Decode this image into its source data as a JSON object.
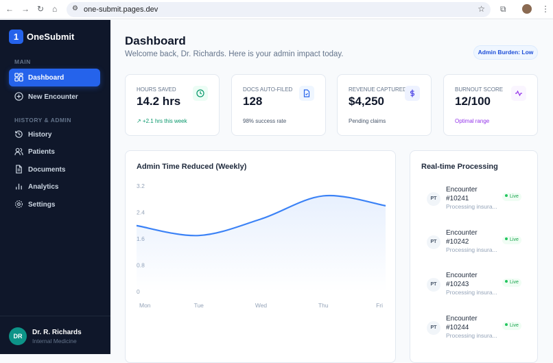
{
  "browser": {
    "url": "one-submit.pages.dev"
  },
  "sidebar": {
    "logo": "1",
    "brand": "OneSubmit",
    "section_main": "MAIN",
    "section_history": "HISTORY & ADMIN",
    "items": [
      {
        "label": "Dashboard",
        "icon": "grid-icon",
        "active": true
      },
      {
        "label": "New Encounter",
        "icon": "plus-circle-icon"
      },
      {
        "label": "History",
        "icon": "history-icon"
      },
      {
        "label": "Patients",
        "icon": "users-icon"
      },
      {
        "label": "Documents",
        "icon": "document-icon"
      },
      {
        "label": "Analytics",
        "icon": "bar-chart-icon"
      },
      {
        "label": "Settings",
        "icon": "gear-icon"
      }
    ],
    "user": {
      "initials": "DR",
      "name": "Dr. R. Richards",
      "role": "Internal Medicine"
    }
  },
  "header": {
    "title": "Dashboard",
    "subtitle": "Welcome back, Dr. Richards. Here is your admin impact today.",
    "badge": "Admin Burden: Low"
  },
  "stats": [
    {
      "title": "HOURS SAVED",
      "value": "14.2 hrs",
      "sub": "↗ +2.1 hrs this week",
      "icon": "clock-icon",
      "color": "#059669"
    },
    {
      "title": "DOCS AUTO-FILED",
      "value": "128",
      "sub": "98% success rate",
      "icon": "file-check-icon",
      "color": "#2563eb"
    },
    {
      "title": "REVENUE CAPTURED",
      "value": "$4,250",
      "sub": "Pending claims",
      "icon": "dollar-icon",
      "color": "#4f46e5"
    },
    {
      "title": "BURNOUT SCORE",
      "value": "12/100",
      "sub": "Optimal range",
      "icon": "activity-icon",
      "color": "#9333ea"
    }
  ],
  "chart_data": {
    "type": "area",
    "title": "Admin Time Reduced (Weekly)",
    "categories": [
      "Mon",
      "Tue",
      "Wed",
      "Thu",
      "Fri"
    ],
    "values": [
      2.0,
      1.7,
      2.2,
      2.9,
      2.6
    ],
    "yticks": [
      "0",
      "0.8",
      "1.6",
      "2.4",
      "3.2"
    ],
    "ylim": [
      0,
      3.2
    ],
    "color": "#3b82f6"
  },
  "realtime": {
    "title": "Real-time Processing",
    "items": [
      {
        "avatar": "PT",
        "name": "Encounter #10241",
        "status": "Processing insura...",
        "badge": "Live"
      },
      {
        "avatar": "PT",
        "name": "Encounter #10242",
        "status": "Processing insura...",
        "badge": "Live"
      },
      {
        "avatar": "PT",
        "name": "Encounter #10243",
        "status": "Processing insura...",
        "badge": "Live"
      },
      {
        "avatar": "PT",
        "name": "Encounter #10244",
        "status": "Processing insura...",
        "badge": "Live"
      }
    ]
  }
}
